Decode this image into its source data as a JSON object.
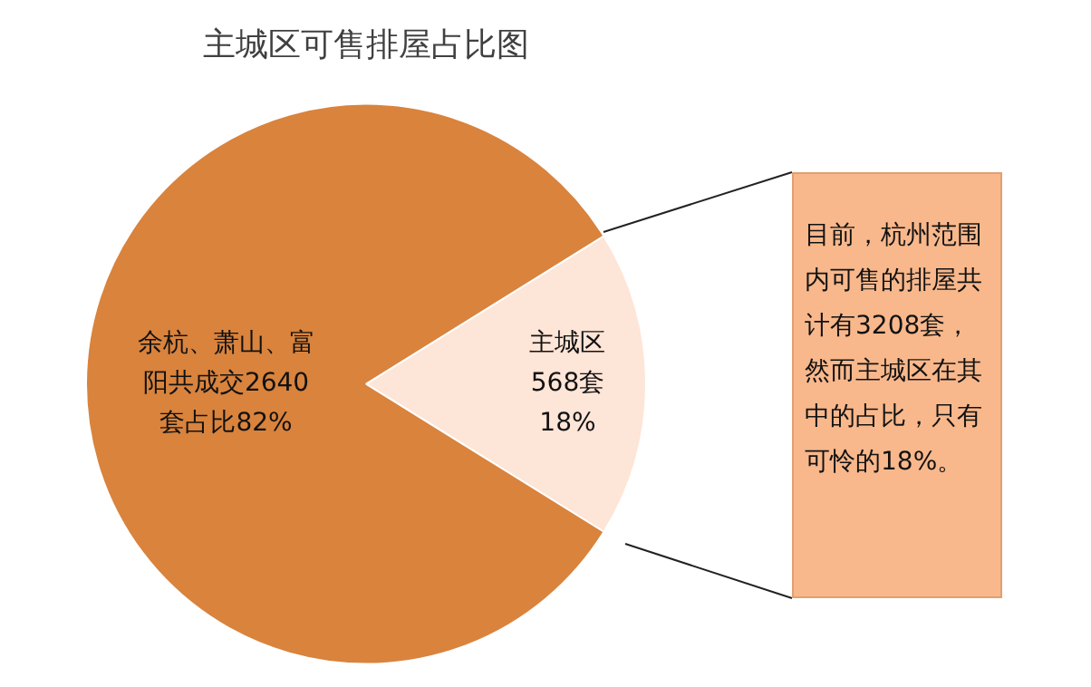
{
  "chart_data": {
    "type": "pie",
    "title": "主城区可售排屋占比图",
    "categories": [
      null,
      null
    ],
    "values": [
      568,
      2640
    ],
    "colors": [
      "#fde5d7",
      "#d9833d"
    ],
    "value_labels": [
      "主城区568套18%",
      "余杭、萧山、富阳共成交2640套占比82%"
    ],
    "legend": false,
    "annotations": [
      "目前，杭州范围内可售的排屋共计有3208套，然而主城区在其中的占比，只有可怜的18%。"
    ]
  }
}
